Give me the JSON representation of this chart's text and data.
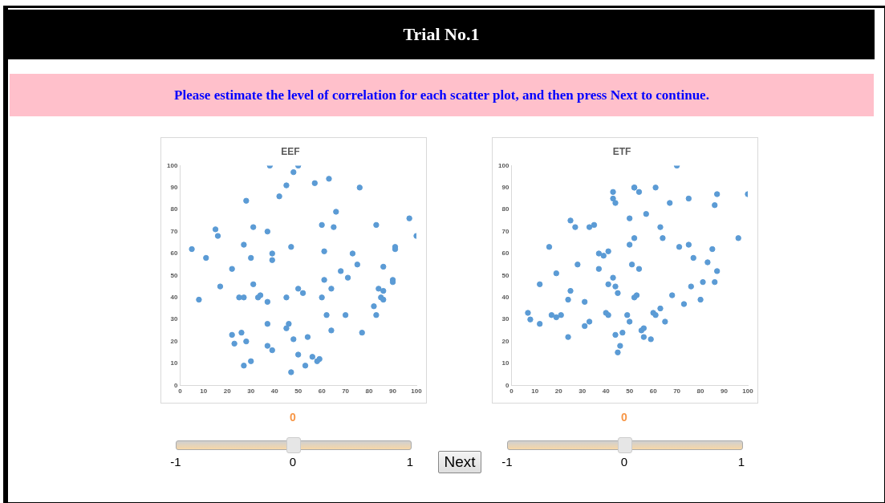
{
  "chart_data": [
    {
      "type": "other",
      "title": "Trial No.1",
      "subtitle": "Please estimate the level of correlation for each scatter plot, and then press Next to continue.",
      "annotations": [
        "Next"
      ]
    },
    {
      "type": "scatter",
      "title": "EEF",
      "color": "#5b9bd5",
      "marker": "circle",
      "xlim": [
        0,
        100
      ],
      "ylim": [
        0,
        100
      ],
      "xticks": [
        0,
        10,
        20,
        30,
        40,
        50,
        60,
        70,
        80,
        90,
        100
      ],
      "yticks": [
        0,
        10,
        20,
        30,
        40,
        50,
        60,
        70,
        80,
        90,
        100
      ],
      "annotations": [
        "0",
        "-1",
        "0",
        "1"
      ],
      "x": [
        5,
        8,
        11,
        15,
        16,
        17,
        22,
        22,
        23,
        25,
        27,
        26,
        27,
        27,
        28,
        28,
        30,
        30,
        31,
        31,
        33,
        34,
        37,
        37,
        37,
        37,
        38,
        39,
        39,
        39,
        42,
        45,
        45,
        45,
        46,
        47,
        47,
        48,
        48,
        50,
        50,
        50,
        52,
        53,
        54,
        56,
        57,
        58,
        59,
        60,
        60,
        61,
        61,
        62,
        63,
        64,
        64,
        65,
        66,
        68,
        70,
        71,
        73,
        75,
        76,
        77,
        82,
        83,
        83,
        84,
        85,
        86,
        86,
        86,
        90,
        90,
        91,
        91,
        97,
        100
      ],
      "values": [
        62,
        39,
        58,
        71,
        68,
        45,
        53,
        23,
        19,
        40,
        40,
        24,
        64,
        9,
        84,
        20,
        58,
        11,
        72,
        46,
        40,
        41,
        38,
        28,
        70,
        18,
        100,
        16,
        60,
        57,
        86,
        40,
        26,
        91,
        28,
        6,
        63,
        97,
        21,
        44,
        100,
        14,
        42,
        9,
        22,
        13,
        92,
        11,
        12,
        40,
        73,
        48,
        61,
        32,
        94,
        25,
        44,
        72,
        79,
        52,
        32,
        49,
        60,
        55,
        90,
        24,
        36,
        73,
        32,
        44,
        40,
        43,
        54,
        39,
        48,
        47,
        62,
        63,
        76,
        68
      ]
    },
    {
      "type": "scatter",
      "title": "ETF",
      "color": "#5b9bd5",
      "marker": "circle",
      "xlim": [
        0,
        100
      ],
      "ylim": [
        0,
        100
      ],
      "xticks": [
        0,
        10,
        20,
        30,
        40,
        50,
        60,
        70,
        80,
        90,
        100
      ],
      "yticks": [
        0,
        10,
        20,
        30,
        40,
        50,
        60,
        70,
        80,
        90,
        100
      ],
      "annotations": [
        "0",
        "-1",
        "0",
        "1"
      ],
      "x": [
        7,
        8,
        12,
        12,
        16,
        17,
        19,
        19,
        21,
        24,
        24,
        25,
        25,
        27,
        28,
        31,
        31,
        33,
        33,
        35,
        37,
        37,
        39,
        40,
        41,
        41,
        41,
        43,
        43,
        43,
        44,
        44,
        44,
        45,
        45,
        46,
        47,
        49,
        50,
        50,
        50,
        51,
        52,
        52,
        52,
        52,
        53,
        54,
        54,
        55,
        56,
        56,
        57,
        59,
        60,
        61,
        61,
        63,
        63,
        64,
        65,
        67,
        68,
        70,
        71,
        73,
        75,
        75,
        76,
        77,
        80,
        81,
        83,
        85,
        86,
        86,
        87,
        87,
        96,
        100
      ],
      "values": [
        33,
        30,
        28,
        46,
        63,
        32,
        51,
        31,
        32,
        39,
        22,
        43,
        75,
        72,
        55,
        38,
        27,
        29,
        72,
        73,
        60,
        53,
        59,
        33,
        61,
        32,
        46,
        88,
        49,
        85,
        45,
        83,
        23,
        42,
        15,
        18,
        24,
        32,
        29,
        64,
        76,
        55,
        90,
        40,
        90,
        67,
        41,
        53,
        88,
        25,
        22,
        26,
        78,
        21,
        33,
        32,
        90,
        35,
        72,
        67,
        29,
        83,
        41,
        100,
        63,
        37,
        85,
        64,
        45,
        58,
        39,
        47,
        56,
        62,
        82,
        47,
        87,
        52,
        67,
        87
      ]
    }
  ]
}
